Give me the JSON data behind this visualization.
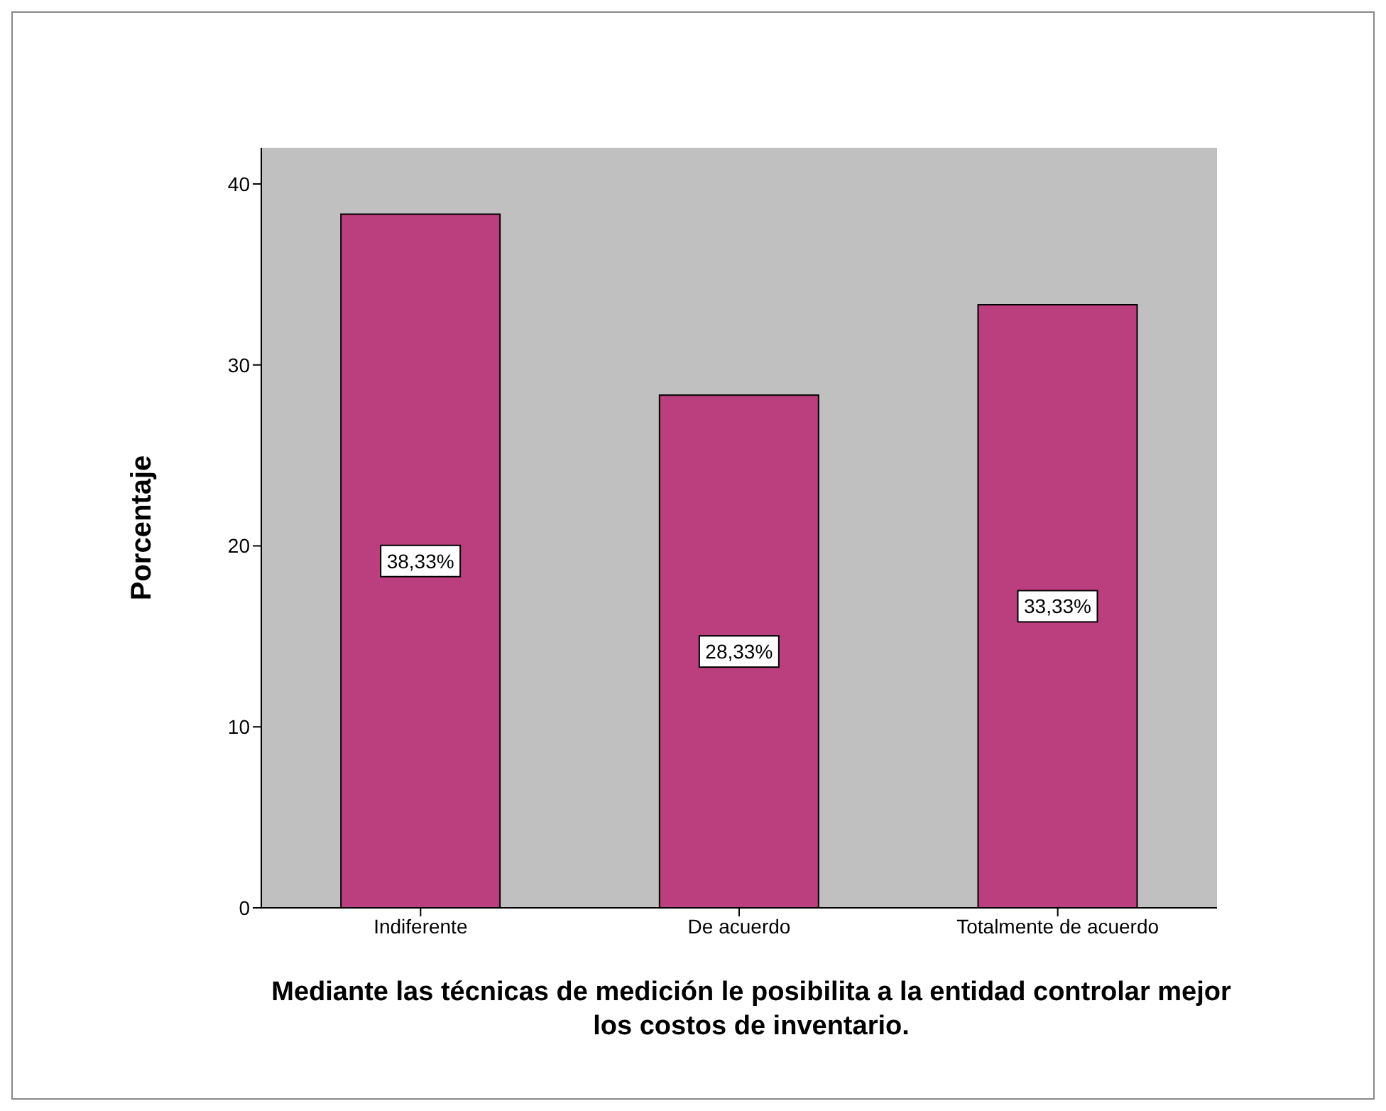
{
  "chart_data": {
    "type": "bar",
    "xlabel": "Mediante las técnicas de medición le posibilita a la entidad controlar mejor los costos de inventario.",
    "ylabel": "Porcentaje",
    "categories": [
      "Indiferente",
      "De acuerdo",
      "Totalmente de acuerdo"
    ],
    "values": [
      38.33,
      28.33,
      33.33
    ],
    "value_labels": [
      "38,33%",
      "28,33%",
      "33,33%"
    ],
    "color": "#bb3e7e",
    "ylim": [
      0,
      42
    ],
    "yticks": [
      0,
      10,
      20,
      30,
      40
    ]
  }
}
